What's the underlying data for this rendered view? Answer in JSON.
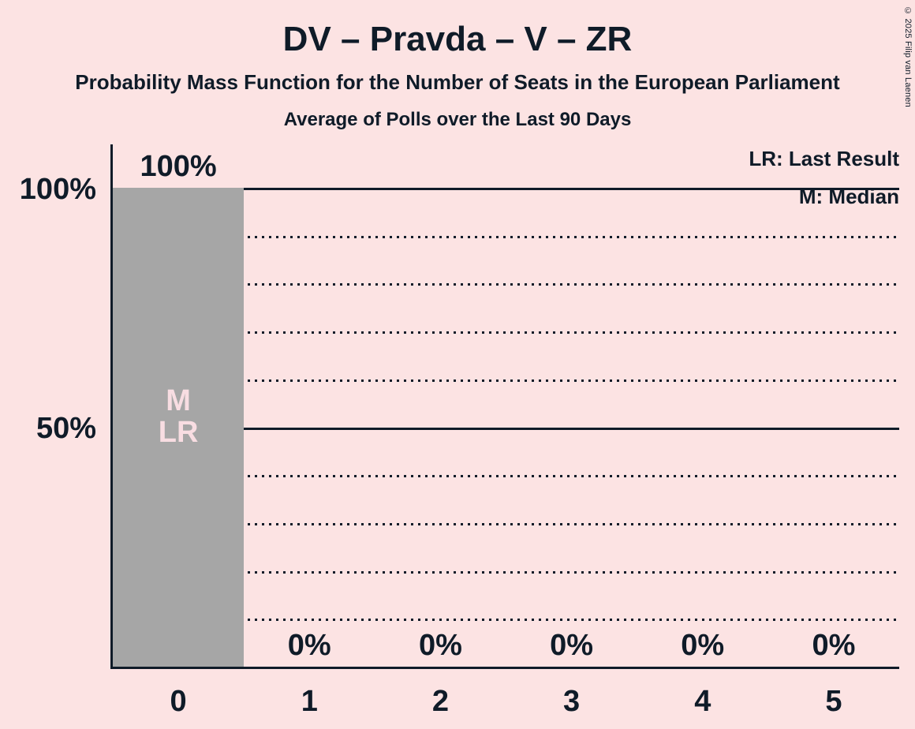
{
  "header": {
    "title": "DV – Pravda – V – ZR",
    "subtitle": "Probability Mass Function for the Number of Seats in the European Parliament",
    "subsubtitle": "Average of Polls over the Last 90 Days"
  },
  "copyright": "© 2025 Filip van Laenen",
  "legend": {
    "lr": "LR: Last Result",
    "m": "M: Median"
  },
  "colors": {
    "background": "#fce3e3",
    "bar": "#a6a6a6",
    "ink": "#0f1b28",
    "bar_label": "#f8dde2"
  },
  "chart_data": {
    "type": "bar",
    "title": "DV – Pravda – V – ZR",
    "subtitle": "Probability Mass Function for the Number of Seats in the European Parliament",
    "subsubtitle": "Average of Polls over the Last 90 Days",
    "categories": [
      "0",
      "1",
      "2",
      "3",
      "4",
      "5"
    ],
    "values": [
      100,
      0,
      0,
      0,
      0,
      0
    ],
    "value_labels": [
      "100%",
      "0%",
      "0%",
      "0%",
      "0%",
      "0%"
    ],
    "bar_annotations": [
      [
        "M",
        "LR"
      ],
      [],
      [],
      [],
      [],
      []
    ],
    "xlabel": "",
    "ylabel": "",
    "ylim": [
      0,
      100
    ],
    "yticks": [
      {
        "value": 100,
        "label": "100%"
      },
      {
        "value": 50,
        "label": "50%"
      }
    ],
    "gridlines": {
      "solid_at": [
        100,
        50
      ],
      "dotted_at": [
        90,
        80,
        70,
        60,
        40,
        30,
        20,
        10
      ]
    },
    "grid": "horizontal",
    "legend_position": "top-right",
    "legend_entries": [
      "LR: Last Result",
      "M: Median"
    ]
  }
}
